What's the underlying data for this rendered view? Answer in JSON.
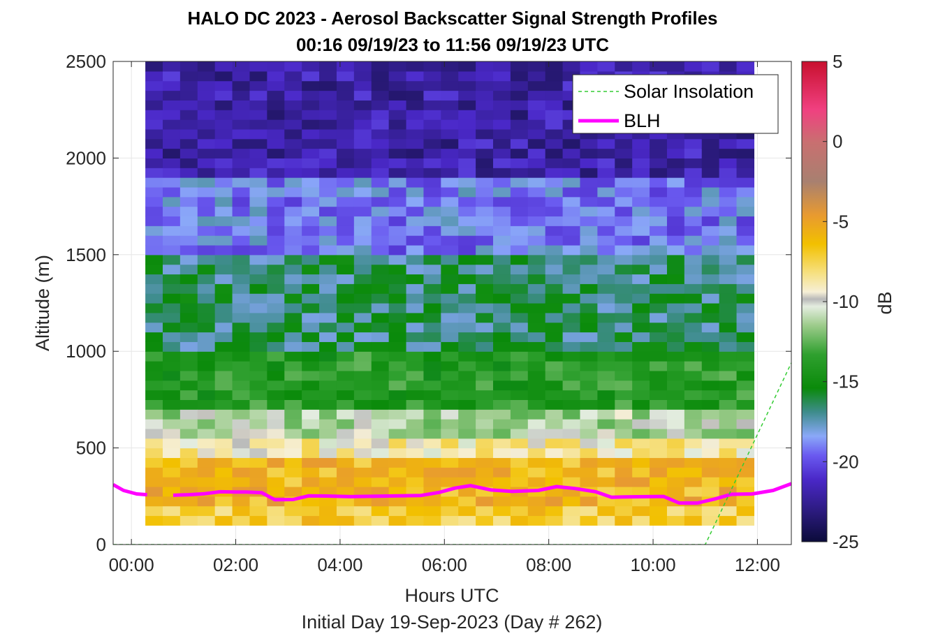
{
  "chart_data": {
    "type": "heatmap",
    "title_line1": "HALO DC 2023 - Aerosol Backscatter Signal Strength Profiles",
    "title_line2": "00:16 09/19/23 to 11:56 09/19/23  UTC",
    "xlabel": "Hours UTC",
    "xlabel_note": "Initial Day 19-Sep-2023 (Day # 262)",
    "ylabel": "Altitude (m)",
    "colorbar_label": "dB",
    "xlim": [
      -0.35,
      12.65
    ],
    "ylim": [
      0,
      2500
    ],
    "xticks": [
      "00:00",
      "02:00",
      "04:00",
      "06:00",
      "08:00",
      "10:00",
      "12:00"
    ],
    "xtick_values": [
      0,
      2,
      4,
      6,
      8,
      10,
      12
    ],
    "yticks": [
      0,
      500,
      1000,
      1500,
      2000,
      2500
    ],
    "clim": [
      -25,
      5
    ],
    "cticks": [
      -25,
      -20,
      -15,
      -10,
      -5,
      0,
      5
    ],
    "grid": true,
    "legend_position": "top-right",
    "legend": [
      "Solar Insolation",
      "BLH"
    ],
    "heatmap": {
      "time_start": 0.267,
      "time_end": 11.933,
      "altitude_bottom": 100,
      "altitude_top": 2500,
      "layers_db": [
        {
          "alt": [
            100,
            200
          ],
          "db": -7
        },
        {
          "alt": [
            200,
            450
          ],
          "db": -6
        },
        {
          "alt": [
            450,
            550
          ],
          "db": -9
        },
        {
          "alt": [
            550,
            700
          ],
          "db": -11
        },
        {
          "alt": [
            700,
            1000
          ],
          "db": -14
        },
        {
          "alt": [
            1000,
            1500
          ],
          "db": -16.5
        },
        {
          "alt": [
            1500,
            1900
          ],
          "db": -19
        },
        {
          "alt": [
            1900,
            2500
          ],
          "db": -22
        }
      ]
    },
    "series": [
      {
        "name": "BLH",
        "color": "#FF00FF",
        "x": [
          -0.35,
          -0.15,
          0.1,
          0.3,
          0.55,
          0.8,
          1.1,
          1.4,
          1.7,
          2.0,
          2.2,
          2.5,
          2.75,
          3.1,
          3.4,
          3.75,
          4.2,
          4.7,
          5.1,
          5.55,
          5.9,
          6.2,
          6.5,
          6.9,
          7.3,
          7.8,
          8.15,
          8.5,
          8.9,
          9.2,
          9.6,
          9.9,
          10.2,
          10.5,
          10.85,
          11.2,
          11.5,
          11.9,
          12.3,
          12.65
        ],
        "y": [
          310,
          280,
          262,
          258,
          null,
          255,
          258,
          263,
          273,
          272,
          272,
          268,
          232,
          233,
          252,
          251,
          248,
          250,
          252,
          254,
          270,
          292,
          305,
          282,
          275,
          280,
          300,
          290,
          273,
          245,
          247,
          248,
          249,
          215,
          215,
          237,
          260,
          262,
          280,
          315
        ]
      },
      {
        "name": "Solar Insolation",
        "color": "#33CC33",
        "x": [
          -0.35,
          10.9,
          11.0,
          12.65
        ],
        "y": [
          0,
          0,
          0,
          940
        ]
      }
    ]
  }
}
